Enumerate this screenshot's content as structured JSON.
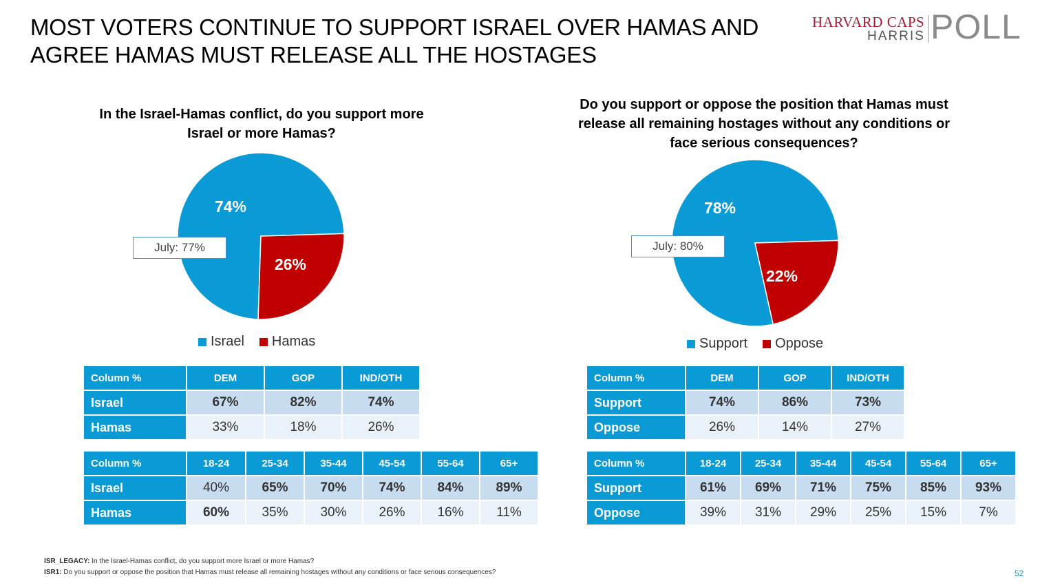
{
  "title": "MOST VOTERS CONTINUE TO SUPPORT ISRAEL OVER HAMAS AND AGREE HAMAS MUST RELEASE ALL THE HOSTAGES",
  "logo": {
    "line1": "HARVARD CAPS",
    "line2": "HARRIS",
    "line3": "POLL"
  },
  "colors": {
    "accent": "#0a9ad6",
    "pie_blue": "#0a9ad6",
    "pie_red": "#c00000"
  },
  "chart_data": [
    {
      "type": "pie",
      "title": "In the Israel-Hamas conflict, do you support more Israel or more Hamas?",
      "categories": [
        "Israel",
        "Hamas"
      ],
      "values": [
        74,
        26
      ],
      "labels": [
        "74%",
        "26%"
      ],
      "annotation": "July: 77%",
      "legend": "bottom"
    },
    {
      "type": "pie",
      "title": "Do you support or oppose the position that Hamas must release all remaining hostages without any conditions or face serious consequences?",
      "categories": [
        "Support",
        "Oppose"
      ],
      "values": [
        78,
        22
      ],
      "labels": [
        "78%",
        "22%"
      ],
      "annotation": "July: 80%",
      "legend": "bottom"
    }
  ],
  "tables": {
    "left_party": {
      "header": [
        "Column %",
        "DEM",
        "GOP",
        "IND/OTH"
      ],
      "rows": [
        {
          "label": "Israel",
          "cells": [
            "67%",
            "82%",
            "74%"
          ]
        },
        {
          "label": "Hamas",
          "cells": [
            "33%",
            "18%",
            "26%"
          ]
        }
      ]
    },
    "left_age": {
      "header": [
        "Column %",
        "18-24",
        "25-34",
        "35-44",
        "45-54",
        "55-64",
        "65+"
      ],
      "rows": [
        {
          "label": "Israel",
          "cells": [
            "40%",
            "65%",
            "70%",
            "74%",
            "84%",
            "89%"
          ]
        },
        {
          "label": "Hamas",
          "cells": [
            "60%",
            "35%",
            "30%",
            "26%",
            "16%",
            "11%"
          ]
        }
      ]
    },
    "right_party": {
      "header": [
        "Column %",
        "DEM",
        "GOP",
        "IND/OTH"
      ],
      "rows": [
        {
          "label": "Support",
          "cells": [
            "74%",
            "86%",
            "73%"
          ]
        },
        {
          "label": "Oppose",
          "cells": [
            "26%",
            "14%",
            "27%"
          ]
        }
      ]
    },
    "right_age": {
      "header": [
        "Column %",
        "18-24",
        "25-34",
        "35-44",
        "45-54",
        "55-64",
        "65+"
      ],
      "rows": [
        {
          "label": "Support",
          "cells": [
            "61%",
            "69%",
            "71%",
            "75%",
            "85%",
            "93%"
          ]
        },
        {
          "label": "Oppose",
          "cells": [
            "39%",
            "31%",
            "29%",
            "25%",
            "15%",
            "7%"
          ]
        }
      ]
    }
  },
  "footnotes": [
    {
      "code": "ISR_LEGACY:",
      "text": "In the Israel-Hamas conflict, do you support more Israel or more Hamas?"
    },
    {
      "code": "ISR1:",
      "text": "Do you support or oppose the position that Hamas must release all remaining hostages without any conditions or face serious consequences?"
    }
  ],
  "page_number": "52"
}
